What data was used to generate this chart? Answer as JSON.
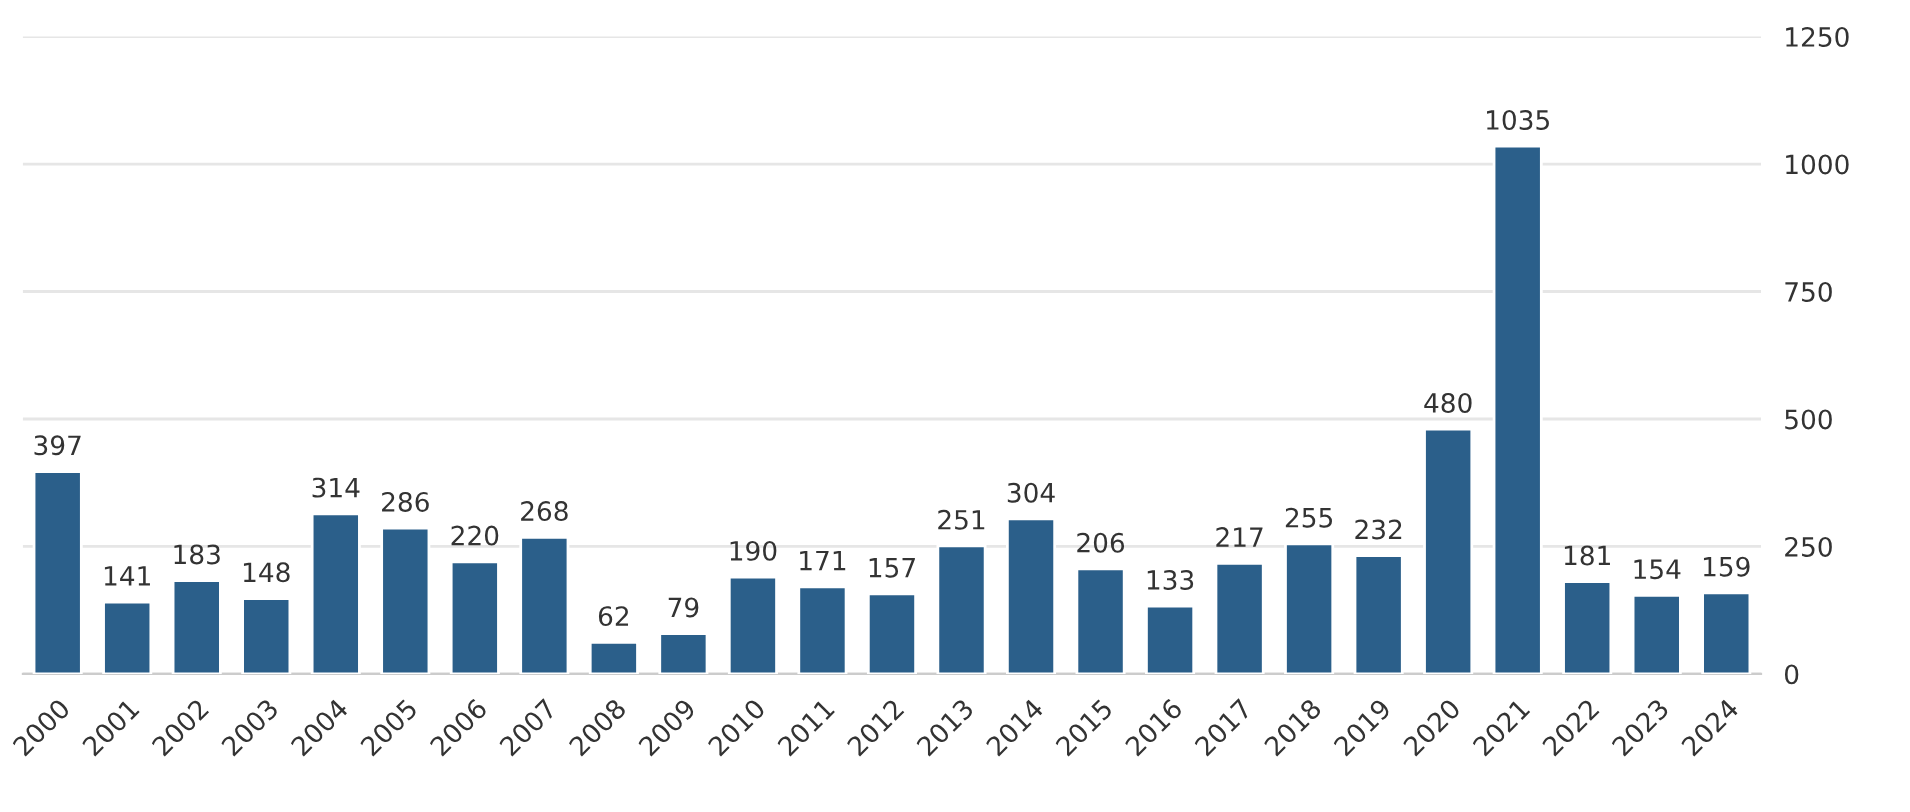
{
  "chart_data": {
    "type": "bar",
    "categories": [
      "2000",
      "2001",
      "2002",
      "2003",
      "2004",
      "2005",
      "2006",
      "2007",
      "2008",
      "2009",
      "2010",
      "2011",
      "2012",
      "2013",
      "2014",
      "2015",
      "2016",
      "2017",
      "2018",
      "2019",
      "2020",
      "2021",
      "2022",
      "2023",
      "2024"
    ],
    "values": [
      397,
      141,
      183,
      148,
      314,
      286,
      220,
      268,
      62,
      79,
      190,
      171,
      157,
      251,
      304,
      206,
      133,
      217,
      255,
      232,
      480,
      1035,
      181,
      154,
      159
    ],
    "color": "#2b5f8a",
    "ylim": [
      0,
      1250
    ],
    "yticks": [
      0,
      250,
      500,
      750,
      1000,
      1250
    ],
    "grid": "y",
    "data_labels": true
  }
}
